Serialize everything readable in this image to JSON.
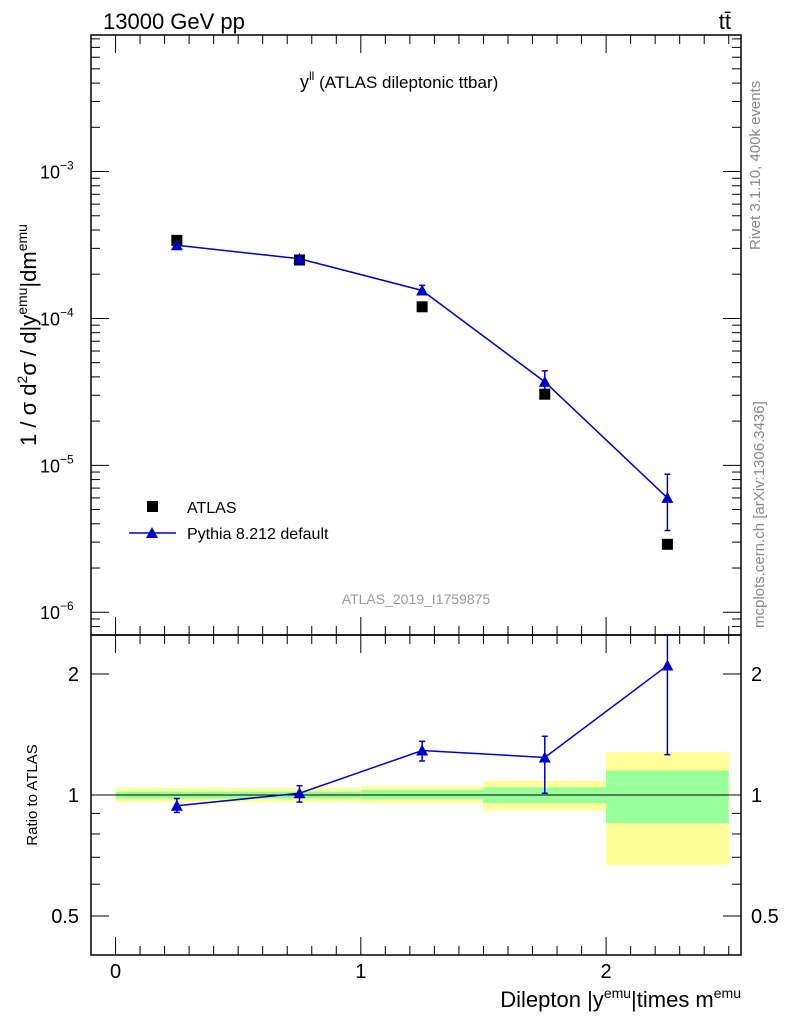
{
  "header": {
    "energy_label": "13000 GeV pp",
    "process_label": "tt̄"
  },
  "side_labels": {
    "rivet": "Rivet 3.1.10,  400k events",
    "mcplots": "mcplots.cern.ch [arXiv:1306.3436]"
  },
  "chart_data": [
    {
      "type": "scatter",
      "title_main": "y",
      "title_sup": "ll",
      "title_rest": " (ATLAS dileptonic ttbar)",
      "watermark": "ATLAS_2019_I1759875",
      "ylabel": "1 / σ  d²σ / d|y^emu|dm^emu",
      "yscale": "log",
      "ylim": [
        7e-07,
        0.0085
      ],
      "y_tick_labels": [
        {
          "value": 1e-06,
          "base": "10",
          "exp": "−6"
        },
        {
          "value": 1e-05,
          "base": "10",
          "exp": "−5"
        },
        {
          "value": 0.0001,
          "base": "10",
          "exp": "−4"
        },
        {
          "value": 0.001,
          "base": "10",
          "exp": "−3"
        }
      ],
      "x": [
        0.25,
        0.75,
        1.25,
        1.75,
        2.25
      ],
      "series": [
        {
          "name": "ATLAS",
          "marker": "square",
          "color": "#000000",
          "values": [
            0.00034,
            0.00025,
            0.00012,
            3.05e-05,
            2.9e-06
          ]
        },
        {
          "name": "Pythia 8.212 default",
          "marker": "triangle",
          "color": "#0000cc",
          "values": [
            0.000315,
            0.000255,
            0.000155,
            3.7e-05,
            6e-06
          ],
          "err_low": [
            0.0003,
            0.000245,
            0.000145,
            3.2e-05,
            3.6e-06
          ],
          "err_high": [
            0.00033,
            0.000265,
            0.000168,
            4.4e-05,
            8.7e-06
          ]
        }
      ],
      "legend": [
        {
          "label": "ATLAS",
          "marker": "square"
        },
        {
          "label": "Pythia 8.212 default",
          "marker": "triangle"
        }
      ],
      "legend_position": "bottom-left"
    },
    {
      "type": "ratio",
      "ylabel": "Ratio to ATLAS",
      "ylim": [
        0.4,
        2.5
      ],
      "y_tick_labels": [
        {
          "value": 0.5,
          "label": "0.5"
        },
        {
          "value": 1,
          "label": "1"
        },
        {
          "value": 2,
          "label": "2"
        }
      ],
      "xlabel_base": "Dilepton |y",
      "xlabel_sup1": "emu",
      "xlabel_mid": "|times m",
      "xlabel_sup2": "emu",
      "xlim": [
        -0.1,
        2.55
      ],
      "x_tick_labels": [
        {
          "value": 0,
          "label": "0"
        },
        {
          "value": 1,
          "label": "1"
        },
        {
          "value": 2,
          "label": "2"
        }
      ],
      "bins": [
        {
          "xlo": 0.0,
          "xhi": 0.5,
          "stat_lo": 0.98,
          "stat_hi": 1.02,
          "tot_lo": 0.96,
          "tot_hi": 1.04
        },
        {
          "xlo": 0.5,
          "xhi": 1.0,
          "stat_lo": 0.98,
          "stat_hi": 1.02,
          "tot_lo": 0.96,
          "tot_hi": 1.04
        },
        {
          "xlo": 1.0,
          "xhi": 1.5,
          "stat_lo": 0.975,
          "stat_hi": 1.03,
          "tot_lo": 0.955,
          "tot_hi": 1.05
        },
        {
          "xlo": 1.5,
          "xhi": 2.0,
          "stat_lo": 0.955,
          "stat_hi": 1.045,
          "tot_lo": 0.915,
          "tot_hi": 1.085
        },
        {
          "xlo": 2.0,
          "xhi": 2.5,
          "stat_lo": 0.85,
          "stat_hi": 1.15,
          "tot_lo": 0.67,
          "tot_hi": 1.28
        }
      ],
      "band_colors": {
        "total": "#ffff99",
        "stat": "#99ff99"
      },
      "points": [
        {
          "x": 0.25,
          "y": 0.94,
          "lo": 0.905,
          "hi": 0.98
        },
        {
          "x": 0.75,
          "y": 1.01,
          "lo": 0.96,
          "hi": 1.055
        },
        {
          "x": 1.25,
          "y": 1.29,
          "lo": 1.215,
          "hi": 1.36
        },
        {
          "x": 1.75,
          "y": 1.24,
          "lo": 1.01,
          "hi": 1.4
        },
        {
          "x": 2.25,
          "y": 2.1,
          "lo": 1.26,
          "hi": 2.5
        }
      ]
    }
  ]
}
